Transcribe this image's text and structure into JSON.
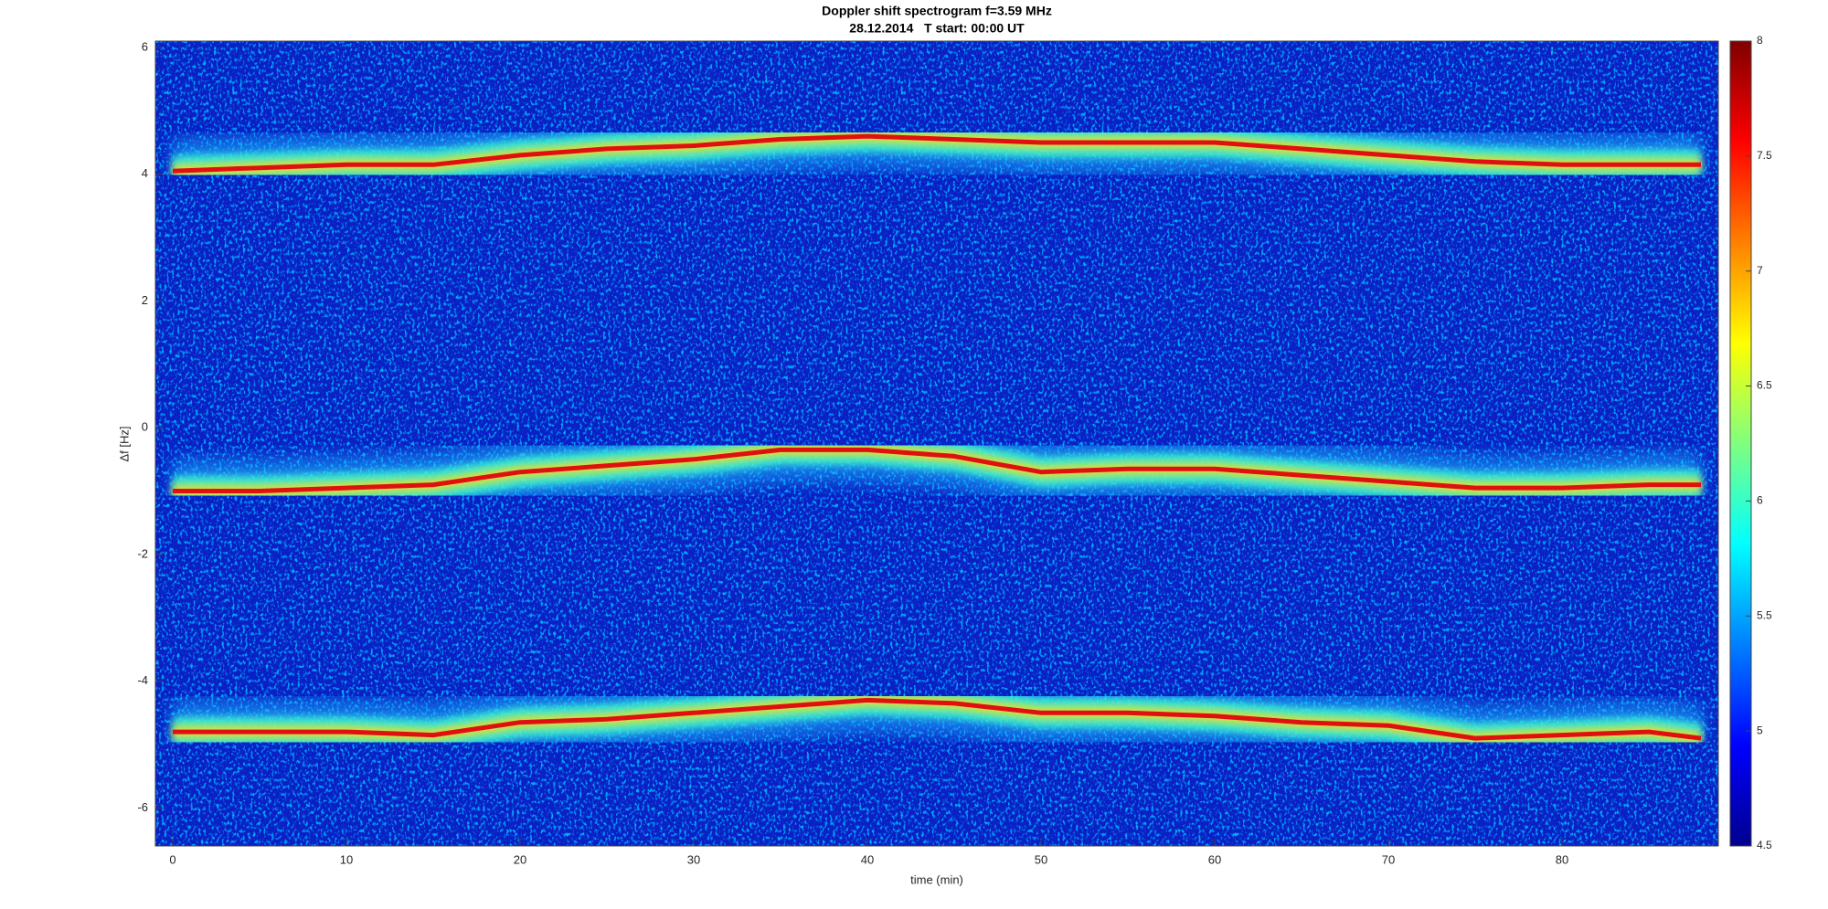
{
  "chart_data": {
    "type": "spectrogram",
    "title": "Doppler shift spectrogram f=3.59 MHz",
    "subtitle": "28.12.2014   T start: 00:00 UT",
    "xlabel": "time (min)",
    "ylabel": "Δf [Hz]",
    "xlim": [
      -1,
      89
    ],
    "xticks": [
      0,
      10,
      20,
      30,
      40,
      50,
      60,
      70,
      80
    ],
    "ylim": [
      -6.6,
      6.1
    ],
    "yticks": [
      -6,
      -4,
      -2,
      0,
      2,
      4,
      6
    ],
    "colormap": "jet",
    "clim": [
      4.5,
      8
    ],
    "cticks": [
      4.5,
      5,
      5.5,
      6,
      6.5,
      7,
      7.5,
      8
    ],
    "x": [
      0,
      5,
      10,
      15,
      20,
      25,
      30,
      35,
      40,
      45,
      50,
      55,
      60,
      65,
      70,
      75,
      80,
      85,
      88
    ],
    "traces": [
      {
        "values": [
          4.05,
          4.1,
          4.15,
          4.15,
          4.3,
          4.4,
          4.45,
          4.55,
          4.6,
          4.55,
          4.5,
          4.5,
          4.5,
          4.4,
          4.3,
          4.2,
          4.15,
          4.15,
          4.15
        ]
      },
      {
        "values": [
          -1.0,
          -1.0,
          -0.95,
          -0.9,
          -0.7,
          -0.6,
          -0.5,
          -0.35,
          -0.35,
          -0.45,
          -0.7,
          -0.65,
          -0.65,
          -0.75,
          -0.85,
          -0.95,
          -0.95,
          -0.9,
          -0.9
        ]
      },
      {
        "values": [
          -4.8,
          -4.8,
          -4.8,
          -4.85,
          -4.65,
          -4.6,
          -4.5,
          -4.4,
          -4.3,
          -4.35,
          -4.5,
          -4.5,
          -4.55,
          -4.65,
          -4.7,
          -4.9,
          -4.85,
          -4.8,
          -4.9
        ]
      }
    ]
  }
}
